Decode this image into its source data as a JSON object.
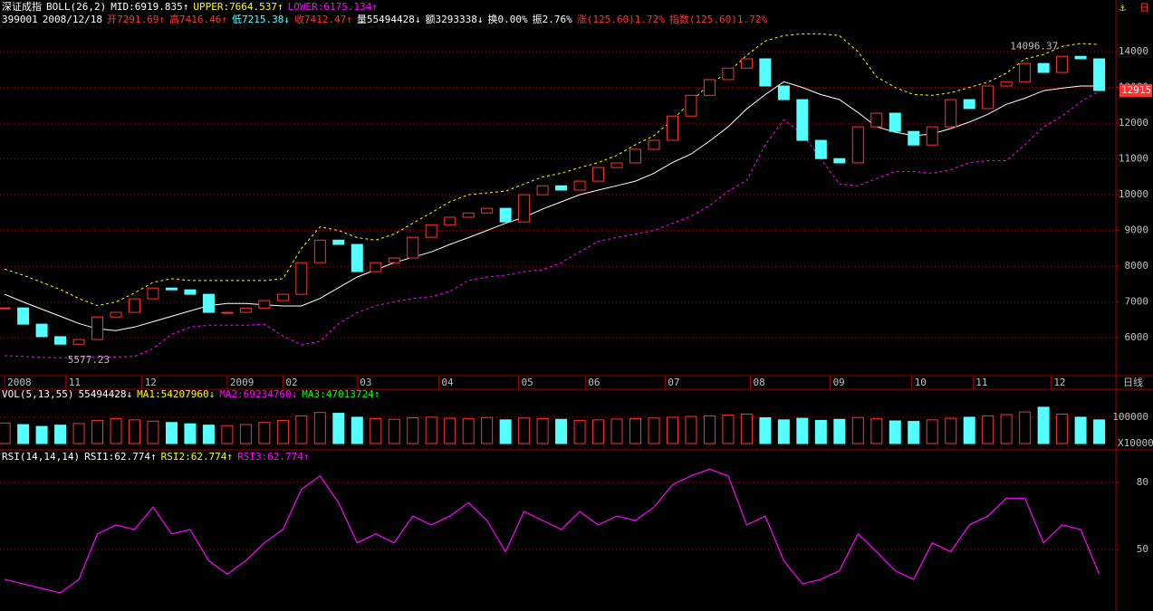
{
  "header": {
    "price_title": [
      {
        "text": "深证成指",
        "color": "#ffffff"
      },
      {
        "text": "BOLL(26,2)",
        "color": "#ffffff"
      },
      {
        "text": "MID:6919.835↑",
        "color": "#ffffff"
      },
      {
        "text": "UPPER:7664.537↑",
        "color": "#ffff00"
      },
      {
        "text": "LOWER:6175.134↑",
        "color": "#ff00ff"
      }
    ],
    "price_info": [
      {
        "text": "399001",
        "color": "#ffffff"
      },
      {
        "text": "2008/12/18",
        "color": "#ffffff"
      },
      {
        "text": "开7291.69↑",
        "color": "#ff3232"
      },
      {
        "text": "高7416.46↑",
        "color": "#ff3232"
      },
      {
        "text": "低7215.38↓",
        "color": "#54ffff"
      },
      {
        "text": "收7412.47↑",
        "color": "#ff3232"
      },
      {
        "text": "量55494428↓",
        "color": "#ffffff"
      },
      {
        "text": "额3293338↓",
        "color": "#ffffff"
      },
      {
        "text": "换0.00%",
        "color": "#ffffff"
      },
      {
        "text": "振2.76%",
        "color": "#ffffff"
      },
      {
        "text": "涨(125.60)1.72%",
        "color": "#ff3232"
      },
      {
        "text": "指数(125.60)1.72%",
        "color": "#ff3232"
      }
    ],
    "volume_title": [
      {
        "text": "VOL(5,13,55)",
        "color": "#ffffff"
      },
      {
        "text": "55494428↓",
        "color": "#ffffff"
      },
      {
        "text": "MA1:54207960↓",
        "color": "#ffff00"
      },
      {
        "text": "MA2:69234760↓",
        "color": "#ff00ff"
      },
      {
        "text": "MA3:47013724↑",
        "color": "#00ff00"
      }
    ],
    "rsi_title": [
      {
        "text": "RSI(14,14,14)",
        "color": "#ffffff"
      },
      {
        "text": "RSI1:62.774↑",
        "color": "#ffffff"
      },
      {
        "text": "RSI2:62.774↑",
        "color": "#ffff00"
      },
      {
        "text": "RSI3:62.774↑",
        "color": "#ff00ff"
      }
    ],
    "period": "日"
  },
  "chart_data": [
    {
      "type": "candlestick",
      "up_color": "#ff3232",
      "down_color": "#54ffff",
      "values": [
        6835,
        6380,
        6030,
        5820,
        5950,
        6580,
        6710,
        7090,
        7390,
        7340,
        7215,
        6710,
        6710,
        6830,
        7040,
        7215,
        8100,
        8730,
        8610,
        7850,
        8100,
        8230,
        8810,
        9160,
        9370,
        9490,
        9620,
        9240,
        10000,
        10250,
        10130,
        10380,
        10760,
        10890,
        11270,
        11520,
        12200,
        12780,
        13220,
        13540,
        13800,
        13040,
        12660,
        11520,
        11010,
        10890,
        11900,
        12280,
        11770,
        11390,
        11900,
        12660,
        12410,
        13040,
        13160,
        13670,
        13420,
        13870,
        13800,
        12915
      ],
      "series": [
        {
          "color": "#ffffff",
          "dash": false,
          "values": [
            7215,
            7000,
            6800,
            6600,
            6400,
            6250,
            6200,
            6300,
            6450,
            6600,
            6750,
            6900,
            6960,
            6960,
            6920,
            6890,
            6890,
            7100,
            7400,
            7700,
            7900,
            8100,
            8250,
            8400,
            8610,
            8800,
            9000,
            9200,
            9370,
            9600,
            9800,
            10000,
            10130,
            10250,
            10380,
            10600,
            10900,
            11140,
            11500,
            11900,
            12400,
            12800,
            13160,
            13000,
            12800,
            12660,
            12300,
            11900,
            11750,
            11650,
            11700,
            11850,
            12030,
            12250,
            12530,
            12700,
            12910,
            12980,
            13040,
            13040
          ]
        },
        {
          "color": "#ffff00",
          "dash": true,
          "values": [
            7920,
            7750,
            7550,
            7350,
            7100,
            6900,
            7000,
            7250,
            7550,
            7650,
            7600,
            7600,
            7600,
            7600,
            7600,
            7650,
            8500,
            9100,
            9000,
            8800,
            8730,
            8900,
            9200,
            9500,
            9800,
            10000,
            10050,
            10100,
            10300,
            10500,
            10600,
            10760,
            10900,
            11100,
            11400,
            11650,
            12100,
            12600,
            13100,
            13420,
            13900,
            14300,
            14450,
            14500,
            14500,
            14450,
            14000,
            13300,
            13000,
            12800,
            12780,
            12850,
            13000,
            13150,
            13400,
            13800,
            13920,
            14150,
            14230,
            14200
          ]
        },
        {
          "color": "#ff00ff",
          "dash": true,
          "values": [
            5500,
            5480,
            5450,
            5440,
            5450,
            5460,
            5460,
            5480,
            5700,
            6100,
            6300,
            6350,
            6350,
            6350,
            6380,
            6050,
            5800,
            5900,
            6400,
            6700,
            6900,
            7000,
            7100,
            7150,
            7300,
            7600,
            7700,
            7750,
            7850,
            7900,
            8100,
            8400,
            8700,
            8800,
            8900,
            9000,
            9200,
            9400,
            9700,
            10100,
            10400,
            11400,
            12100,
            11700,
            11000,
            10300,
            10250,
            10450,
            10650,
            10650,
            10600,
            10700,
            10900,
            10950,
            10950,
            11400,
            11900,
            12200,
            12600,
            12900
          ]
        }
      ],
      "xlim": [
        -0.25,
        59.9
      ],
      "ylim": [
        4940,
        14990
      ],
      "yticks": [
        6000,
        7000,
        8000,
        9000,
        10000,
        11000,
        12000,
        13000,
        14000
      ],
      "xticks": [
        {
          "value": 0,
          "label": "2008"
        },
        {
          "value": 3.3,
          "label": "11"
        },
        {
          "value": 7.4,
          "label": "12"
        },
        {
          "value": 12,
          "label": "2009"
        },
        {
          "value": 15,
          "label": "02"
        },
        {
          "value": 19,
          "label": "03"
        },
        {
          "value": 23.4,
          "label": "04"
        },
        {
          "value": 27.7,
          "label": "05"
        },
        {
          "value": 31.3,
          "label": "06"
        },
        {
          "value": 35.6,
          "label": "07"
        },
        {
          "value": 40.2,
          "label": "08"
        },
        {
          "value": 44.5,
          "label": "09"
        },
        {
          "value": 48.9,
          "label": "10"
        },
        {
          "value": 52.2,
          "label": "11"
        },
        {
          "value": 56.4,
          "label": "12"
        }
      ],
      "x_label": "日线",
      "annotations": [
        {
          "value": 14096.37,
          "label": "14096.37",
          "x": 54.2
        },
        {
          "value": 5577.23,
          "label": "5577.23",
          "x": 3.4
        }
      ],
      "last_value": 12915,
      "grid": true
    },
    {
      "type": "bar",
      "up_color": "#ff3232",
      "down_color": "#54ffff",
      "values": [
        78000,
        72000,
        65000,
        70000,
        76000,
        88000,
        95000,
        90000,
        85000,
        80000,
        75000,
        70000,
        68000,
        72000,
        80000,
        88000,
        105000,
        118000,
        115000,
        100000,
        95000,
        92000,
        98000,
        100000,
        96000,
        94000,
        99000,
        90000,
        97000,
        95000,
        92000,
        88000,
        90000,
        93000,
        95000,
        97000,
        100000,
        103000,
        105000,
        108000,
        112000,
        98000,
        90000,
        96000,
        88000,
        92000,
        99000,
        94000,
        86000,
        84000,
        90000,
        96000,
        100000,
        105000,
        110000,
        120000,
        138000,
        112000,
        100000,
        90000
      ],
      "ylim": [
        0,
        172000
      ],
      "yticks": [
        100000
      ],
      "unit_label": "X10000",
      "grid": true
    },
    {
      "type": "line",
      "color": "#ff00ff",
      "values": [
        36.6,
        34.6,
        32.6,
        30.6,
        36.6,
        56.9,
        61,
        59,
        69,
        57,
        59,
        45,
        39,
        45,
        53,
        59,
        77,
        83,
        71,
        53,
        57,
        53,
        65,
        61,
        65,
        71,
        63,
        49,
        67,
        63,
        59,
        67,
        61,
        65,
        63,
        69,
        79,
        83,
        86,
        83,
        61,
        65,
        45,
        34.6,
        36.6,
        40.5,
        57,
        49,
        40.5,
        36.6,
        53,
        49,
        61,
        65,
        73,
        73,
        53,
        61,
        59,
        39
      ],
      "ylim": [
        25.3,
        93.4
      ],
      "yticks": [
        50,
        80
      ],
      "grid": true
    }
  ]
}
